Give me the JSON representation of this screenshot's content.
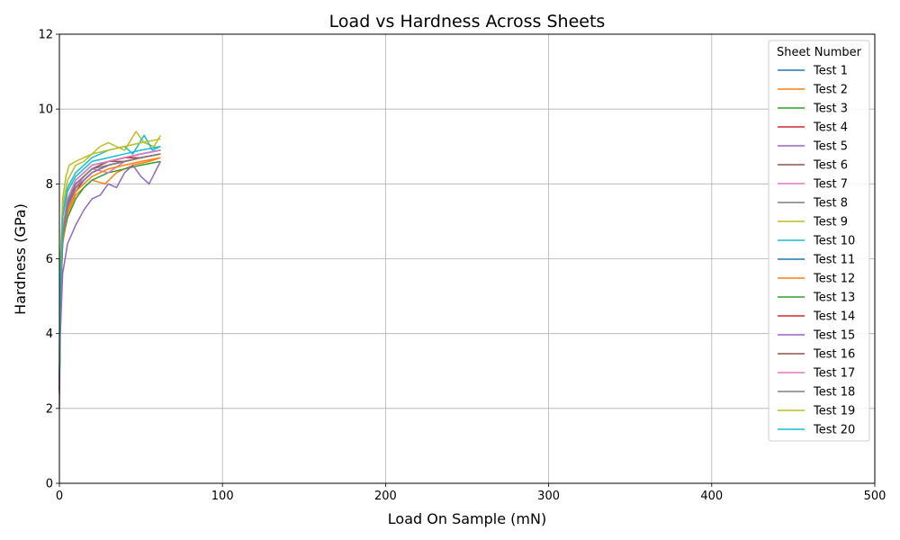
{
  "chart_data": {
    "type": "line",
    "title": "Load vs Hardness Across Sheets",
    "xlabel": "Load On Sample (mN)",
    "ylabel": "Hardness (GPa)",
    "xlim": [
      0,
      500
    ],
    "ylim": [
      0,
      12
    ],
    "xticks": [
      0,
      100,
      200,
      300,
      400,
      500
    ],
    "yticks": [
      0,
      2,
      4,
      6,
      8,
      10,
      12
    ],
    "grid": true,
    "legend": {
      "title": "Sheet Number",
      "placement": "upper right"
    },
    "series": [
      {
        "name": "Test 1",
        "color": "#1f77b4",
        "points": [
          [
            0,
            2.5
          ],
          [
            0.5,
            4.8
          ],
          [
            2,
            6.6
          ],
          [
            5,
            7.4
          ],
          [
            10,
            7.9
          ],
          [
            15,
            8.1
          ],
          [
            20,
            8.3
          ],
          [
            30,
            8.5
          ],
          [
            40,
            8.6
          ],
          [
            50,
            8.7
          ],
          [
            62,
            8.8
          ]
        ]
      },
      {
        "name": "Test 2",
        "color": "#ff7f0e",
        "points": [
          [
            0,
            2.4
          ],
          [
            0.5,
            4.6
          ],
          [
            2,
            6.4
          ],
          [
            5,
            7.2
          ],
          [
            10,
            7.7
          ],
          [
            15,
            7.9
          ],
          [
            20,
            8.1
          ],
          [
            28,
            8.0
          ],
          [
            35,
            8.3
          ],
          [
            45,
            8.5
          ],
          [
            55,
            8.6
          ],
          [
            62,
            8.7
          ]
        ]
      },
      {
        "name": "Test 3",
        "color": "#2ca02c",
        "points": [
          [
            0,
            2.5
          ],
          [
            0.5,
            4.7
          ],
          [
            2,
            6.5
          ],
          [
            5,
            7.1
          ],
          [
            10,
            7.6
          ],
          [
            15,
            7.9
          ],
          [
            20,
            8.1
          ],
          [
            30,
            8.3
          ],
          [
            40,
            8.4
          ],
          [
            50,
            8.5
          ],
          [
            62,
            8.6
          ]
        ]
      },
      {
        "name": "Test 4",
        "color": "#d62728",
        "points": [
          [
            0,
            2.6
          ],
          [
            0.5,
            4.9
          ],
          [
            2,
            6.7
          ],
          [
            5,
            7.5
          ],
          [
            10,
            7.9
          ],
          [
            15,
            8.2
          ],
          [
            20,
            8.4
          ],
          [
            30,
            8.6
          ],
          [
            40,
            8.7
          ],
          [
            50,
            8.8
          ],
          [
            62,
            8.9
          ]
        ]
      },
      {
        "name": "Test 5",
        "color": "#9467bd",
        "points": [
          [
            0,
            2.0
          ],
          [
            0.5,
            3.9
          ],
          [
            2,
            5.6
          ],
          [
            5,
            6.4
          ],
          [
            10,
            6.9
          ],
          [
            15,
            7.3
          ],
          [
            20,
            7.6
          ],
          [
            25,
            7.7
          ],
          [
            30,
            8.0
          ],
          [
            35,
            7.9
          ],
          [
            40,
            8.3
          ],
          [
            45,
            8.5
          ],
          [
            50,
            8.2
          ],
          [
            55,
            8.0
          ],
          [
            62,
            8.6
          ]
        ]
      },
      {
        "name": "Test 6",
        "color": "#8c564b",
        "points": [
          [
            0,
            2.4
          ],
          [
            0.5,
            4.6
          ],
          [
            2,
            6.5
          ],
          [
            5,
            7.3
          ],
          [
            10,
            7.8
          ],
          [
            15,
            8.1
          ],
          [
            20,
            8.3
          ],
          [
            30,
            8.5
          ],
          [
            40,
            8.6
          ],
          [
            50,
            8.7
          ],
          [
            62,
            8.8
          ]
        ]
      },
      {
        "name": "Test 7",
        "color": "#e377c2",
        "points": [
          [
            0,
            2.5
          ],
          [
            0.5,
            4.7
          ],
          [
            2,
            6.6
          ],
          [
            5,
            7.4
          ],
          [
            10,
            7.9
          ],
          [
            15,
            8.2
          ],
          [
            20,
            8.4
          ],
          [
            30,
            8.3
          ],
          [
            40,
            8.6
          ],
          [
            50,
            8.7
          ],
          [
            62,
            8.8
          ]
        ]
      },
      {
        "name": "Test 8",
        "color": "#7f7f7f",
        "points": [
          [
            0,
            2.5
          ],
          [
            0.5,
            4.8
          ],
          [
            2,
            6.6
          ],
          [
            5,
            7.5
          ],
          [
            10,
            8.0
          ],
          [
            15,
            8.2
          ],
          [
            20,
            8.4
          ],
          [
            30,
            8.6
          ],
          [
            40,
            8.7
          ],
          [
            50,
            8.8
          ],
          [
            62,
            8.9
          ]
        ]
      },
      {
        "name": "Test 9",
        "color": "#bcbd22",
        "points": [
          [
            0,
            3.5
          ],
          [
            0.5,
            5.9
          ],
          [
            2,
            7.6
          ],
          [
            4,
            8.2
          ],
          [
            6,
            8.5
          ],
          [
            10,
            8.6
          ],
          [
            15,
            8.7
          ],
          [
            20,
            8.8
          ],
          [
            25,
            9.0
          ],
          [
            30,
            9.1
          ],
          [
            35,
            9.0
          ],
          [
            40,
            8.9
          ],
          [
            47,
            9.4
          ],
          [
            52,
            9.1
          ],
          [
            58,
            9.0
          ],
          [
            62,
            9.3
          ]
        ]
      },
      {
        "name": "Test 10",
        "color": "#17becf",
        "points": [
          [
            0,
            3.0
          ],
          [
            0.5,
            5.4
          ],
          [
            2,
            7.2
          ],
          [
            5,
            7.9
          ],
          [
            10,
            8.3
          ],
          [
            15,
            8.5
          ],
          [
            20,
            8.7
          ],
          [
            30,
            8.9
          ],
          [
            40,
            9.0
          ],
          [
            45,
            8.8
          ],
          [
            52,
            9.3
          ],
          [
            57,
            8.9
          ],
          [
            62,
            9.0
          ]
        ]
      },
      {
        "name": "Test 11",
        "color": "#1f77b4",
        "points": [
          [
            0,
            2.6
          ],
          [
            0.5,
            4.9
          ],
          [
            2,
            6.8
          ],
          [
            5,
            7.6
          ],
          [
            10,
            8.1
          ],
          [
            15,
            8.3
          ],
          [
            20,
            8.5
          ],
          [
            30,
            8.6
          ],
          [
            40,
            8.7
          ],
          [
            50,
            8.8
          ],
          [
            62,
            8.9
          ]
        ]
      },
      {
        "name": "Test 12",
        "color": "#ff7f0e",
        "points": [
          [
            0,
            2.4
          ],
          [
            0.5,
            4.6
          ],
          [
            2,
            6.5
          ],
          [
            5,
            7.3
          ],
          [
            10,
            7.8
          ],
          [
            15,
            8.0
          ],
          [
            20,
            8.2
          ],
          [
            30,
            8.4
          ],
          [
            40,
            8.5
          ],
          [
            50,
            8.6
          ],
          [
            62,
            8.7
          ]
        ]
      },
      {
        "name": "Test 13",
        "color": "#2ca02c",
        "points": [
          [
            0,
            2.5
          ],
          [
            0.5,
            4.7
          ],
          [
            2,
            6.6
          ],
          [
            5,
            7.4
          ],
          [
            10,
            7.9
          ],
          [
            15,
            8.1
          ],
          [
            20,
            8.3
          ],
          [
            30,
            8.5
          ],
          [
            40,
            8.6
          ],
          [
            50,
            8.7
          ],
          [
            62,
            8.8
          ]
        ]
      },
      {
        "name": "Test 14",
        "color": "#d62728",
        "points": [
          [
            0,
            2.6
          ],
          [
            0.5,
            4.8
          ],
          [
            2,
            6.7
          ],
          [
            5,
            7.5
          ],
          [
            10,
            8.0
          ],
          [
            15,
            8.2
          ],
          [
            20,
            8.4
          ],
          [
            30,
            8.6
          ],
          [
            40,
            8.7
          ],
          [
            50,
            8.7
          ],
          [
            62,
            8.8
          ]
        ]
      },
      {
        "name": "Test 15",
        "color": "#9467bd",
        "points": [
          [
            0,
            2.5
          ],
          [
            0.5,
            4.7
          ],
          [
            2,
            6.6
          ],
          [
            5,
            7.4
          ],
          [
            10,
            7.9
          ],
          [
            15,
            8.1
          ],
          [
            20,
            8.3
          ],
          [
            30,
            8.5
          ],
          [
            40,
            8.6
          ],
          [
            50,
            8.7
          ],
          [
            62,
            8.8
          ]
        ]
      },
      {
        "name": "Test 16",
        "color": "#8c564b",
        "points": [
          [
            0,
            2.5
          ],
          [
            0.5,
            4.8
          ],
          [
            2,
            6.7
          ],
          [
            5,
            7.5
          ],
          [
            10,
            8.0
          ],
          [
            15,
            8.2
          ],
          [
            20,
            8.4
          ],
          [
            30,
            8.6
          ],
          [
            40,
            8.6
          ],
          [
            50,
            8.7
          ],
          [
            62,
            8.8
          ]
        ]
      },
      {
        "name": "Test 17",
        "color": "#e377c2",
        "points": [
          [
            0,
            2.6
          ],
          [
            0.5,
            4.9
          ],
          [
            2,
            6.8
          ],
          [
            5,
            7.6
          ],
          [
            10,
            8.1
          ],
          [
            15,
            8.3
          ],
          [
            20,
            8.5
          ],
          [
            30,
            8.6
          ],
          [
            40,
            8.7
          ],
          [
            50,
            8.8
          ],
          [
            62,
            8.9
          ]
        ]
      },
      {
        "name": "Test 18",
        "color": "#7f7f7f",
        "points": [
          [
            0,
            2.5
          ],
          [
            0.5,
            4.7
          ],
          [
            2,
            6.6
          ],
          [
            5,
            7.5
          ],
          [
            10,
            8.0
          ],
          [
            15,
            8.2
          ],
          [
            20,
            8.4
          ],
          [
            30,
            8.5
          ],
          [
            40,
            8.6
          ],
          [
            50,
            8.7
          ],
          [
            62,
            8.8
          ]
        ]
      },
      {
        "name": "Test 19",
        "color": "#bcbd22",
        "points": [
          [
            0,
            3.2
          ],
          [
            0.5,
            5.6
          ],
          [
            2,
            7.4
          ],
          [
            5,
            8.1
          ],
          [
            10,
            8.5
          ],
          [
            15,
            8.6
          ],
          [
            20,
            8.8
          ],
          [
            30,
            8.9
          ],
          [
            40,
            9.0
          ],
          [
            50,
            9.1
          ],
          [
            62,
            9.2
          ]
        ]
      },
      {
        "name": "Test 20",
        "color": "#17becf",
        "points": [
          [
            0,
            2.9
          ],
          [
            0.5,
            5.3
          ],
          [
            2,
            7.1
          ],
          [
            5,
            7.8
          ],
          [
            10,
            8.2
          ],
          [
            15,
            8.4
          ],
          [
            20,
            8.6
          ],
          [
            30,
            8.7
          ],
          [
            40,
            8.8
          ],
          [
            50,
            8.9
          ],
          [
            62,
            9.0
          ]
        ]
      }
    ]
  }
}
